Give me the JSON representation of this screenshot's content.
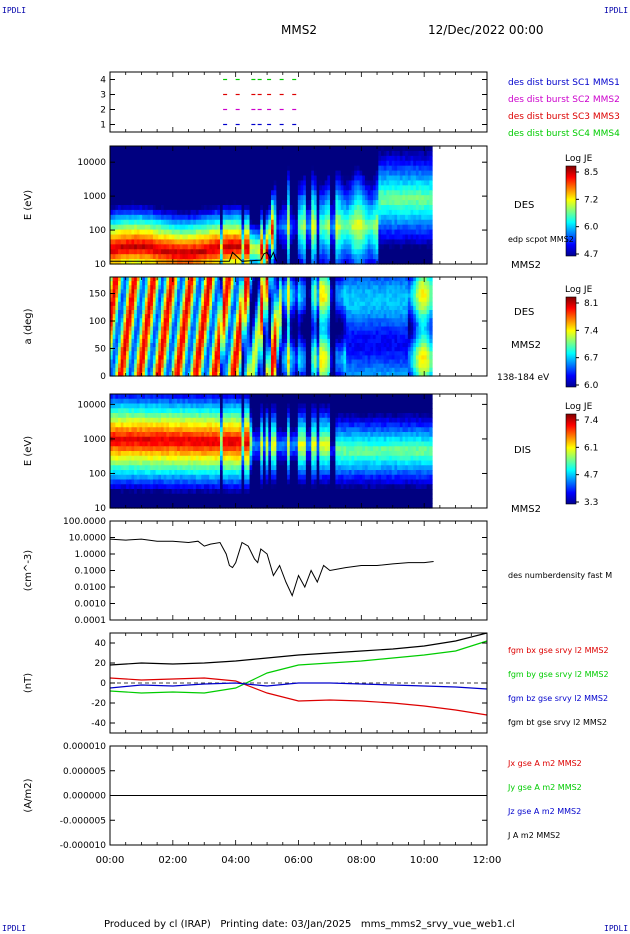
{
  "corner_tag": "IPDLI",
  "header": {
    "spacecraft": "MMS2",
    "datetime": "12/Dec/2022 00:00"
  },
  "footer": {
    "text": "Produced by cl (IRAP)   Printing date: 03/Jan/2025   mms_mms2_srvy_vue_web1.cl"
  },
  "colors": {
    "blue": "#0000cc",
    "magenta": "#cc00cc",
    "red": "#dd0000",
    "green": "#00cc00",
    "black": "#000000"
  },
  "chart_data": [
    {
      "type": "scatter",
      "title": "",
      "yticks": [
        "1",
        "2",
        "3",
        "4"
      ],
      "ylim": [
        0.5,
        4.5
      ],
      "legend": [
        {
          "label": "des dist burst SC1 MMS1",
          "color": "#0000cc"
        },
        {
          "label": "des dist burst SC2 MMS2",
          "color": "#cc00cc"
        },
        {
          "label": "des dist burst SC3 MMS3",
          "color": "#dd0000"
        },
        {
          "label": "des dist burst SC4 MMS4",
          "color": "#00cc00"
        }
      ],
      "x_hours_marks": [
        3.6,
        4.0,
        4.5,
        4.7,
        5.0,
        5.4,
        5.8
      ]
    },
    {
      "type": "heatmap",
      "ylabel": "E (eV)",
      "yticks": [
        "10",
        "100",
        "1000",
        "10000"
      ],
      "ylim": [
        10,
        30000
      ],
      "log_y": true,
      "side_labels": [
        "DES",
        "edp scpot MMS2",
        "MMS2"
      ],
      "colorbar": {
        "title": "Log JE",
        "ticks": [
          "8.5",
          "7.2",
          "6.0",
          "4.7"
        ],
        "range": [
          4.7,
          8.5
        ]
      }
    },
    {
      "type": "heatmap",
      "ylabel": "a (deg)",
      "yticks": [
        "0",
        "50",
        "100",
        "150"
      ],
      "ylim": [
        0,
        180
      ],
      "side_labels": [
        "DES",
        "MMS2",
        "138-184 eV"
      ],
      "colorbar": {
        "title": "Log JE",
        "ticks": [
          "8.1",
          "7.4",
          "6.7",
          "6.0"
        ],
        "range": [
          6.0,
          8.1
        ]
      }
    },
    {
      "type": "heatmap",
      "ylabel": "E (eV)",
      "yticks": [
        "10",
        "100",
        "1000",
        "10000"
      ],
      "ylim": [
        10,
        20000
      ],
      "log_y": true,
      "side_labels": [
        "DIS",
        "MMS2"
      ],
      "colorbar": {
        "title": "Log JE",
        "ticks": [
          "7.4",
          "6.1",
          "4.7",
          "3.3"
        ],
        "range": [
          3.3,
          7.4
        ]
      }
    },
    {
      "type": "line",
      "ylabel": "(cm^-3)",
      "log_y": true,
      "yticks": [
        "100.0000",
        "10.0000",
        "1.0000",
        "0.1000",
        "0.0100",
        "0.0010",
        "0.0001"
      ],
      "ylim": [
        0.0001,
        100
      ],
      "series": [
        {
          "name": "des numberdensity fast M",
          "color": "#000000",
          "x": [
            0,
            0.5,
            1.0,
            1.5,
            2.0,
            2.5,
            2.8,
            3.0,
            3.2,
            3.5,
            3.7,
            3.8,
            3.9,
            4.0,
            4.2,
            4.4,
            4.6,
            4.7,
            4.8,
            5.0,
            5.2,
            5.4,
            5.6,
            5.8,
            6.0,
            6.2,
            6.4,
            6.6,
            6.8,
            7.0,
            7.5,
            8.0,
            8.5,
            9.0,
            9.5,
            10.0,
            10.3
          ],
          "y": [
            8,
            7,
            8,
            6,
            6,
            5,
            6,
            3,
            4,
            5,
            1,
            0.2,
            0.15,
            0.3,
            5,
            3,
            0.5,
            0.3,
            2,
            1,
            0.05,
            0.2,
            0.02,
            0.003,
            0.05,
            0.01,
            0.1,
            0.02,
            0.2,
            0.1,
            0.15,
            0.2,
            0.2,
            0.25,
            0.3,
            0.3,
            0.35
          ]
        }
      ]
    },
    {
      "type": "line",
      "ylabel": "(nT)",
      "yticks": [
        "40",
        "20",
        "0",
        "-20",
        "-40"
      ],
      "ylim": [
        -50,
        50
      ],
      "series": [
        {
          "name": "fgm bx gse srvy l2 MMS2",
          "color": "#dd0000",
          "x": [
            0,
            1,
            2,
            3,
            4,
            5,
            6,
            7,
            8,
            9,
            10,
            11,
            12
          ],
          "y": [
            5,
            3,
            4,
            5,
            2,
            -10,
            -18,
            -17,
            -18,
            -20,
            -23,
            -27,
            -32
          ]
        },
        {
          "name": "fgm by gse srvy l2 MMS2",
          "color": "#00cc00",
          "x": [
            0,
            1,
            2,
            3,
            4,
            5,
            6,
            7,
            8,
            9,
            10,
            11,
            12
          ],
          "y": [
            -8,
            -10,
            -9,
            -10,
            -5,
            10,
            18,
            20,
            22,
            25,
            28,
            32,
            42
          ]
        },
        {
          "name": "fgm bz gse srvy l2 MMS2",
          "color": "#0000cc",
          "x": [
            0,
            1,
            2,
            3,
            4,
            5,
            6,
            7,
            8,
            9,
            10,
            11,
            12
          ],
          "y": [
            -5,
            -2,
            -3,
            -1,
            0,
            -3,
            0,
            0,
            -1,
            -2,
            -3,
            -4,
            -6
          ]
        },
        {
          "name": "fgm bt gse srvy l2 MMS2",
          "color": "#000000",
          "x": [
            0,
            1,
            2,
            3,
            4,
            5,
            6,
            7,
            8,
            9,
            10,
            11,
            12
          ],
          "y": [
            18,
            20,
            19,
            20,
            22,
            25,
            28,
            30,
            32,
            34,
            37,
            42,
            50
          ]
        }
      ]
    },
    {
      "type": "line",
      "ylabel": "(A/m2)",
      "yticks": [
        "0.000010",
        "0.000005",
        "0.000000",
        "-0.000005",
        "-0.000010"
      ],
      "ylim": [
        -1e-05,
        1e-05
      ],
      "series": [
        {
          "name": "Jx gse A m2 MMS2",
          "color": "#dd0000",
          "x": [
            0,
            12
          ],
          "y": [
            0,
            0
          ]
        },
        {
          "name": "Jy gse A m2 MMS2",
          "color": "#00cc00",
          "x": [
            0,
            12
          ],
          "y": [
            0,
            0
          ]
        },
        {
          "name": "Jz gse A m2 MMS2",
          "color": "#0000cc",
          "x": [
            0,
            12
          ],
          "y": [
            0,
            0
          ]
        },
        {
          "name": "J A m2 MMS2",
          "color": "#000000",
          "x": [
            0,
            12
          ],
          "y": [
            0,
            0
          ]
        }
      ],
      "xticks": [
        "00:00",
        "02:00",
        "04:00",
        "06:00",
        "08:00",
        "10:00",
        "12:00"
      ],
      "xlim": [
        0,
        12
      ]
    }
  ]
}
